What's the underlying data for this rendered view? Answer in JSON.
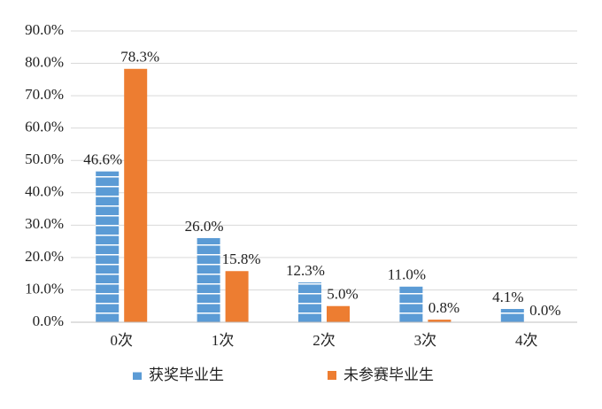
{
  "chart_data": {
    "type": "bar",
    "categories": [
      "0次",
      "1次",
      "2次",
      "3次",
      "4次"
    ],
    "series": [
      {
        "name": "获奖毕业生",
        "color": "#5b9bd5",
        "values": [
          46.6,
          26.0,
          12.3,
          11.0,
          4.1
        ],
        "value_labels": [
          "46.6%",
          "26.0%",
          "12.3%",
          "11.0%",
          "4.1%"
        ]
      },
      {
        "name": "未参赛毕业生",
        "color": "#ed7d31",
        "values": [
          78.3,
          15.8,
          5.0,
          0.8,
          0.0
        ],
        "value_labels": [
          "78.3%",
          "15.8%",
          "5.0%",
          "0.8%",
          "0.0%"
        ]
      }
    ],
    "ylim": [
      0,
      90
    ],
    "yticks": [
      {
        "value": 0,
        "label": "0.0%"
      },
      {
        "value": 10,
        "label": "10.0%"
      },
      {
        "value": 20,
        "label": "20.0%"
      },
      {
        "value": 30,
        "label": "30.0%"
      },
      {
        "value": 40,
        "label": "40.0%"
      },
      {
        "value": 50,
        "label": "50.0%"
      },
      {
        "value": 60,
        "label": "60.0%"
      },
      {
        "value": 70,
        "label": "70.0%"
      },
      {
        "value": 80,
        "label": "80.0%"
      },
      {
        "value": 90,
        "label": "90.0%"
      }
    ],
    "grid": true,
    "legend": "bottom"
  }
}
